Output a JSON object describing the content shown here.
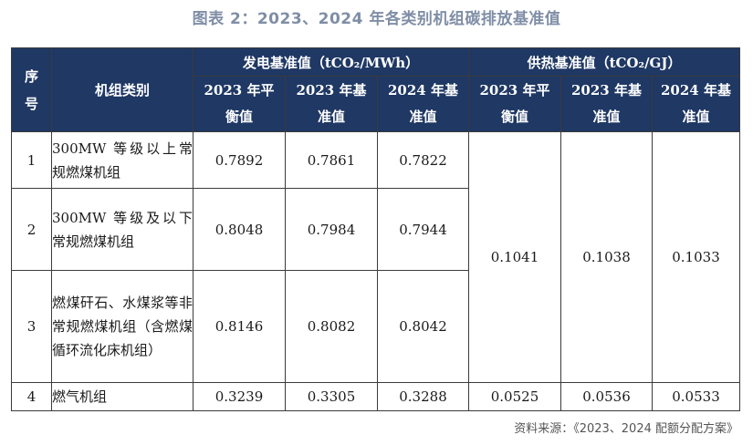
{
  "title": "图表 2：2023、2024 年各类别机组碳排放基准值",
  "header": {
    "seq": "序号",
    "category": "机组类别",
    "power_group": "发电基准值（tCO₂/MWh）",
    "heat_group": "供热基准值（tCO₂/GJ）",
    "cols": [
      "2023 年平衡值",
      "2023 年基准值",
      "2024 年基准值",
      "2023 年平衡值",
      "2023 年基准值",
      "2024 年基准值"
    ]
  },
  "rows": [
    {
      "no": "1",
      "category": "300MW 等级以上常规燃煤机组",
      "power": [
        "0.7892",
        "0.7861",
        "0.7822"
      ]
    },
    {
      "no": "2",
      "category": "300MW 等级及以下常规燃煤机组",
      "power": [
        "0.8048",
        "0.7984",
        "0.7944"
      ]
    },
    {
      "no": "3",
      "category": "燃煤矸石、水煤浆等非常规燃煤机组（含燃煤循环流化床机组）",
      "power": [
        "0.8146",
        "0.8082",
        "0.8042"
      ]
    },
    {
      "no": "4",
      "category": "燃气机组",
      "power": [
        "0.3239",
        "0.3305",
        "0.3288"
      ],
      "heat": [
        "0.0525",
        "0.0536",
        "0.0533"
      ]
    }
  ],
  "coal_heat": [
    "0.1041",
    "0.1038",
    "0.1033"
  ],
  "source": "资料来源：《2023、2024 配额分配方案》"
}
